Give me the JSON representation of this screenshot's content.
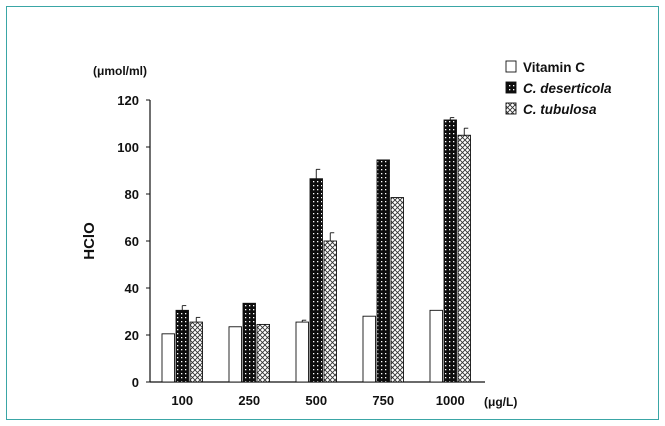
{
  "chart_data": {
    "type": "bar",
    "categories": [
      "100",
      "250",
      "500",
      "750",
      "1000"
    ],
    "series": [
      {
        "name": "Vitamin C",
        "values": [
          20.5,
          23.5,
          25.5,
          28,
          30.5
        ],
        "errors": [
          0,
          0,
          0.8,
          0,
          0
        ],
        "pattern": "white",
        "italic": false
      },
      {
        "name": "C. deserticola",
        "values": [
          30.5,
          33.5,
          86.5,
          94.5,
          111.5
        ],
        "errors": [
          2,
          0,
          4,
          0,
          1
        ],
        "pattern": "black-dots",
        "italic": true
      },
      {
        "name": "C. tubulosa",
        "values": [
          25.5,
          24.5,
          60,
          78.5,
          105
        ],
        "errors": [
          2,
          0,
          3.5,
          0,
          3
        ],
        "pattern": "crosshatch",
        "italic": true
      }
    ],
    "ylabel": "HClO",
    "y_unit": "(μmol/ml)",
    "x_unit": "(μg/L)",
    "ylim": [
      0,
      120
    ],
    "yticks": [
      "0",
      "20",
      "40",
      "60",
      "80",
      "100",
      "120"
    ],
    "grid": false,
    "legend_position": "top-right"
  },
  "colors": {
    "frame_border": "#3aa6a6",
    "bar_outline": "#111111"
  }
}
